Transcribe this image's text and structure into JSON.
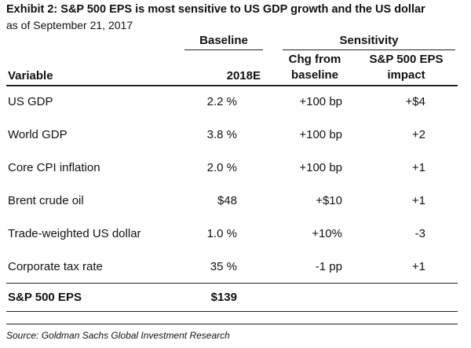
{
  "header": {
    "title": "Exhibit 2: S&P 500 EPS is most sensitive to US GDP growth and the US dollar",
    "subtitle": "as of September 21, 2017"
  },
  "table": {
    "group_headers": [
      "Baseline",
      "Sensitivity"
    ],
    "columns": [
      "Variable",
      "2018E",
      "Chg from baseline",
      "S&P 500 EPS impact"
    ],
    "rows": [
      [
        "US GDP",
        "2.2 %",
        "+100 bp",
        "+$4"
      ],
      [
        "World GDP",
        "3.8 %",
        "+100 bp",
        "+2"
      ],
      [
        "Core CPI inflation",
        "2.0 %",
        "+100 bp",
        "+1"
      ],
      [
        "Brent crude oil",
        "$48",
        "+$10",
        "+1"
      ],
      [
        "Trade-weighted US dollar",
        "1.0 %",
        "+10%",
        "-3"
      ],
      [
        "Corporate tax rate",
        "35 %",
        "-1 pp",
        "+1"
      ],
      [
        "S&P 500 EPS",
        "$139"
      ]
    ]
  },
  "footer": {
    "source": "Source: Goldman Sachs Global Investment Research"
  }
}
